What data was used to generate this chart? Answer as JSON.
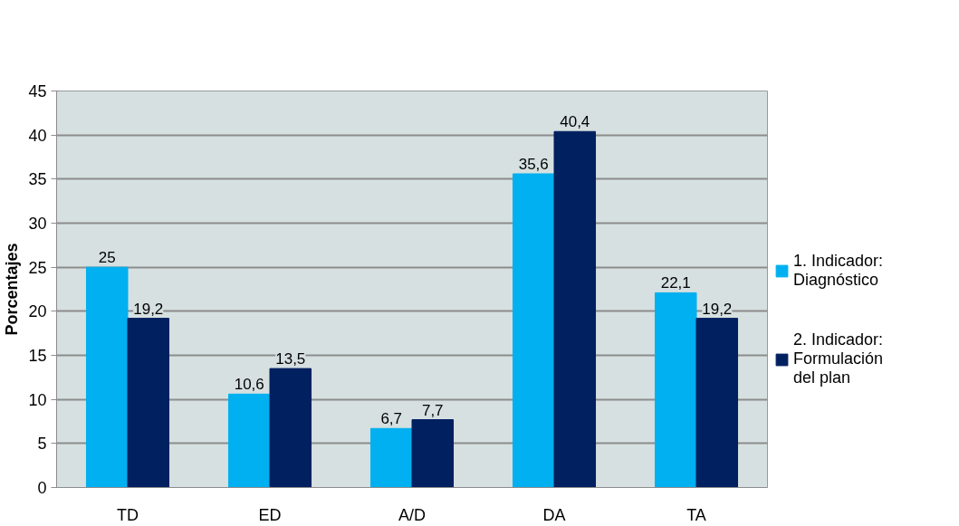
{
  "chart_data": {
    "type": "bar",
    "ylabel": "Porcentajes",
    "categories": [
      "TD",
      "ED",
      "A/D",
      "DA",
      "TA"
    ],
    "series": [
      {
        "name": "1. Indicador: Diagnóstico",
        "color": "#00b0f0",
        "values": [
          25,
          10.6,
          6.7,
          35.6,
          22.1
        ],
        "value_labels": [
          "25",
          "10,6",
          "6,7",
          "35,6",
          "22,1"
        ]
      },
      {
        "name": "2. Indicador: Formulación del plan",
        "color": "#002060",
        "values": [
          19.2,
          13.5,
          7.7,
          40.4,
          19.2
        ],
        "value_labels": [
          "19,2",
          "13,5",
          "7,7",
          "40,4",
          "19,2"
        ]
      }
    ],
    "ylim": [
      0,
      45
    ],
    "yticks": [
      0,
      5,
      10,
      15,
      20,
      25,
      30,
      35,
      40,
      45
    ],
    "grid": "y",
    "legend": "right"
  }
}
